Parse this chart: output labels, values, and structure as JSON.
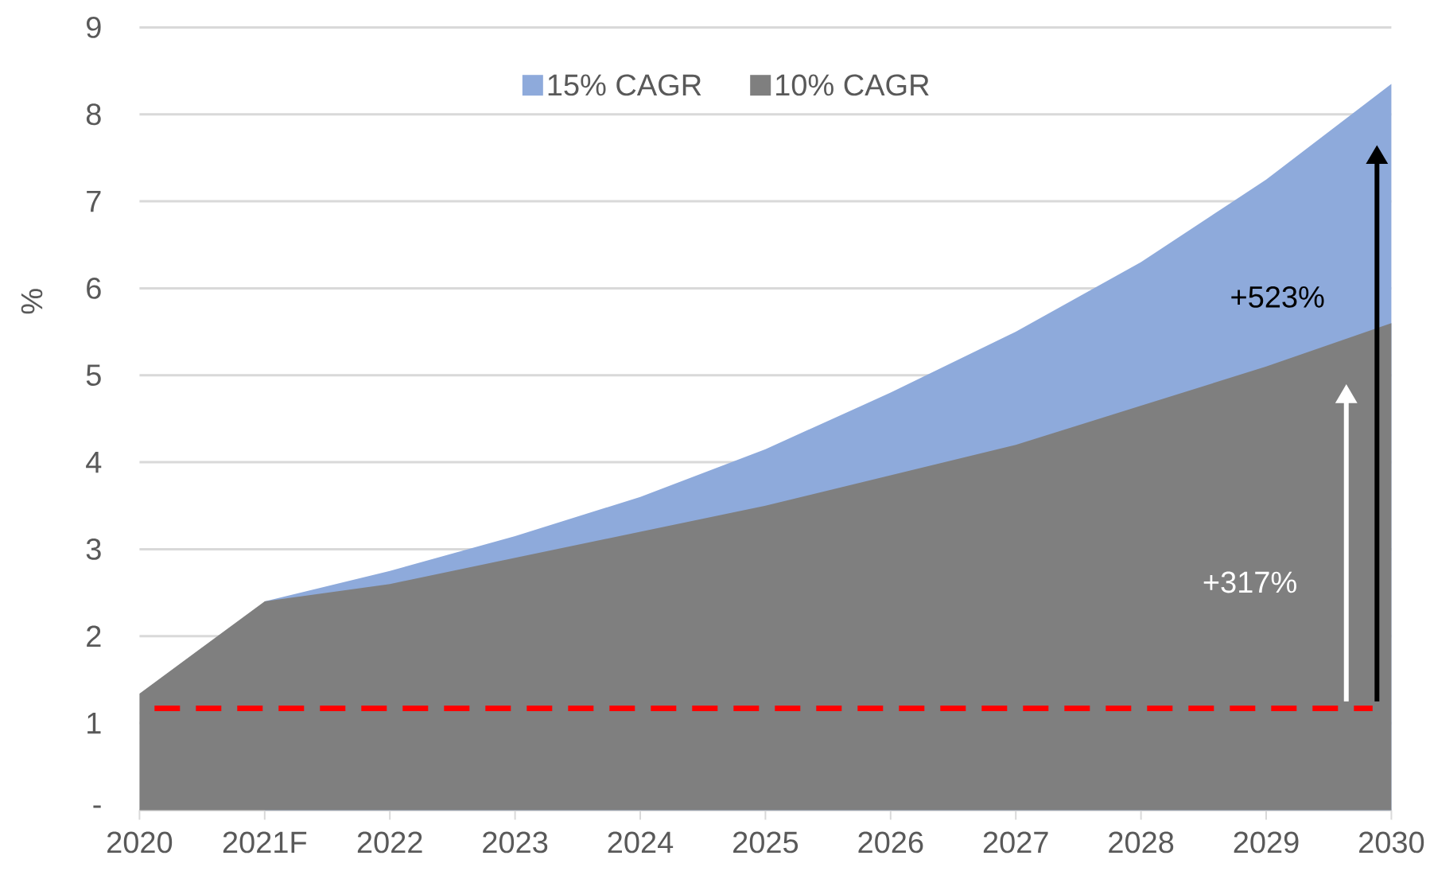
{
  "chart_data": {
    "type": "area",
    "ylabel": "%",
    "categories": [
      "2020",
      "2021F",
      "2022",
      "2023",
      "2024",
      "2025",
      "2026",
      "2027",
      "2028",
      "2029",
      "2030"
    ],
    "series": [
      {
        "name": "15% CAGR",
        "color": "#8eaadb",
        "values": [
          null,
          2.4,
          2.75,
          3.15,
          3.6,
          4.15,
          4.8,
          5.5,
          6.3,
          7.25,
          8.35
        ]
      },
      {
        "name": "10% CAGR",
        "color": "#7f7f7f",
        "values": [
          1.34,
          2.4,
          2.6,
          2.9,
          3.2,
          3.5,
          3.85,
          4.2,
          4.65,
          5.1,
          5.6
        ]
      }
    ],
    "ylim": [
      0,
      9
    ],
    "yticks": [
      {
        "value": 0,
        "label": "-"
      },
      1,
      2,
      3,
      4,
      5,
      6,
      7,
      8,
      9
    ],
    "grid": "y",
    "legend": "top",
    "ref_lines": [
      {
        "axis": "y",
        "value": 1.17,
        "color": "#ff0000",
        "line_style": "dashed"
      }
    ],
    "annotations": [
      "+523%",
      "+317%"
    ]
  }
}
